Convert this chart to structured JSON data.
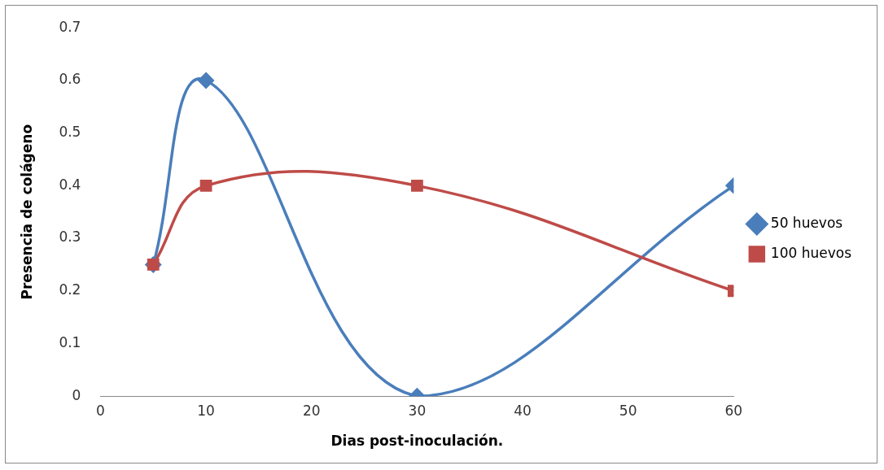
{
  "chart_data": {
    "type": "line",
    "xlabel": "Dias post-inoculación.",
    "ylabel": "Presencia de colágeno",
    "x": [
      5,
      10,
      30,
      60
    ],
    "series": [
      {
        "name": "50 huevos",
        "color": "#4a7ebb",
        "marker": "diamond",
        "values": [
          0.25,
          0.6,
          0,
          0.4
        ]
      },
      {
        "name": "100 huevos",
        "color": "#be4b48",
        "marker": "square",
        "values": [
          0.25,
          0.4,
          0.4,
          0.2
        ]
      }
    ],
    "xlim": [
      0,
      60
    ],
    "xticks": [
      0,
      10,
      20,
      30,
      40,
      50,
      60
    ],
    "ylim": [
      0,
      0.7
    ],
    "yticks": [
      0,
      0.1,
      0.2,
      0.3,
      0.4,
      0.5,
      0.6,
      0.7
    ],
    "grid": false,
    "legend": "right"
  }
}
